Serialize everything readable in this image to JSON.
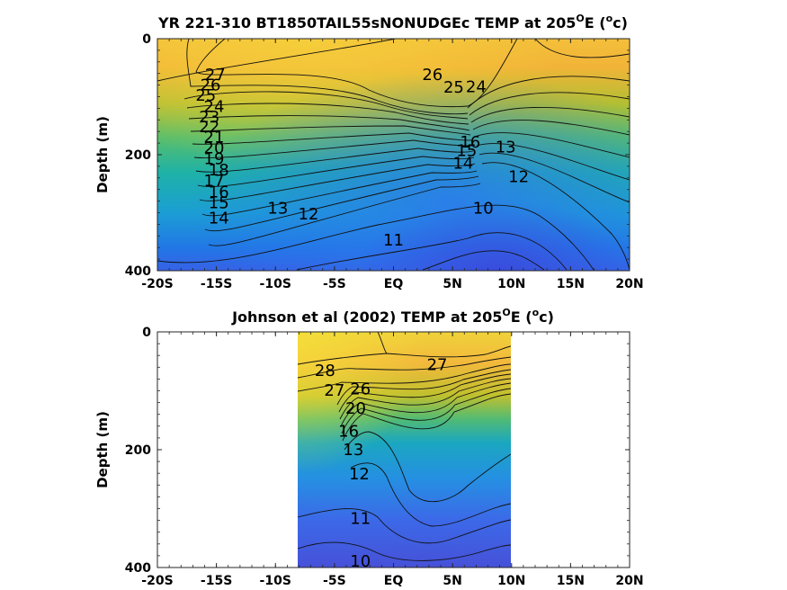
{
  "chart_data": [
    {
      "type": "contour",
      "title": "YR 221-310 BT1850TAIL55sNONUDGEc TEMP at 205",
      "title_sup": "O",
      "title_tail": "E (",
      "title_sup2": "o",
      "title_end": "c)",
      "ylabel": "Depth (m)",
      "x_ticks": [
        "-20S",
        "-15S",
        "-10S",
        "-5S",
        "EQ",
        "5N",
        "10N",
        "15N",
        "20N"
      ],
      "y_ticks": [
        "0",
        "200",
        "400"
      ],
      "xlim": [
        -20,
        20
      ],
      "ylim": [
        0,
        400
      ],
      "data_xlim": [
        -20,
        20
      ],
      "colormap": "parula",
      "contour_levels": [
        10,
        11,
        12,
        13,
        14,
        15,
        16,
        17,
        18,
        19,
        20,
        21,
        22,
        23,
        24,
        25,
        26,
        27
      ],
      "contour_labels": [
        {
          "text": "27",
          "x": -15.1,
          "y": 62
        },
        {
          "text": "26",
          "x": -15.5,
          "y": 80
        },
        {
          "text": "25",
          "x": -15.9,
          "y": 98
        },
        {
          "text": "24",
          "x": -15.2,
          "y": 117
        },
        {
          "text": "23",
          "x": -15.6,
          "y": 135
        },
        {
          "text": "22",
          "x": -15.6,
          "y": 152
        },
        {
          "text": "21",
          "x": -15.2,
          "y": 170
        },
        {
          "text": "20",
          "x": -15.2,
          "y": 188
        },
        {
          "text": "19",
          "x": -15.2,
          "y": 207
        },
        {
          "text": "18",
          "x": -14.8,
          "y": 226
        },
        {
          "text": "17",
          "x": -15.2,
          "y": 245
        },
        {
          "text": "16",
          "x": -14.8,
          "y": 264
        },
        {
          "text": "15",
          "x": -14.8,
          "y": 283
        },
        {
          "text": "14",
          "x": -14.8,
          "y": 309
        },
        {
          "text": "13",
          "x": -9.8,
          "y": 292
        },
        {
          "text": "12",
          "x": -7.2,
          "y": 302
        },
        {
          "text": "11",
          "x": 0,
          "y": 347
        },
        {
          "text": "10",
          "x": 7.6,
          "y": 292
        },
        {
          "text": "26",
          "x": 3.3,
          "y": 62
        },
        {
          "text": "25",
          "x": 5.1,
          "y": 84
        },
        {
          "text": "24",
          "x": 7.0,
          "y": 83
        },
        {
          "text": "16",
          "x": 6.5,
          "y": 178
        },
        {
          "text": "15",
          "x": 6.2,
          "y": 193
        },
        {
          "text": "14",
          "x": 5.9,
          "y": 215
        },
        {
          "text": "13",
          "x": 9.5,
          "y": 187
        },
        {
          "text": "12",
          "x": 10.6,
          "y": 238
        }
      ]
    },
    {
      "type": "contour",
      "title": "Johnson et al (2002) TEMP at 205",
      "title_sup": "O",
      "title_tail": "E (",
      "title_sup2": "o",
      "title_end": "c)",
      "ylabel": "Depth (m)",
      "x_ticks": [
        "-20S",
        "-15S",
        "-10S",
        "-5S",
        "EQ",
        "5N",
        "10N",
        "15N",
        "20N"
      ],
      "y_ticks": [
        "0",
        "200",
        "400"
      ],
      "xlim": [
        -20,
        20
      ],
      "ylim": [
        0,
        400
      ],
      "data_xlim": [
        -8,
        10
      ],
      "colormap": "parula",
      "contour_levels": [
        10,
        11,
        12,
        13,
        14,
        15,
        16,
        17,
        18,
        19,
        20,
        21,
        22,
        23,
        24,
        25,
        26,
        27,
        28
      ],
      "contour_labels": [
        {
          "text": "28",
          "x": -5.8,
          "y": 66
        },
        {
          "text": "27",
          "x": -5.0,
          "y": 99
        },
        {
          "text": "27",
          "x": 3.7,
          "y": 56
        },
        {
          "text": "26",
          "x": -2.8,
          "y": 97
        },
        {
          "text": "20",
          "x": -3.2,
          "y": 130
        },
        {
          "text": "16",
          "x": -3.8,
          "y": 169
        },
        {
          "text": "13",
          "x": -3.4,
          "y": 200
        },
        {
          "text": "12",
          "x": -2.9,
          "y": 241
        },
        {
          "text": "11",
          "x": -2.8,
          "y": 317
        },
        {
          "text": "10",
          "x": -2.8,
          "y": 389
        }
      ]
    }
  ]
}
